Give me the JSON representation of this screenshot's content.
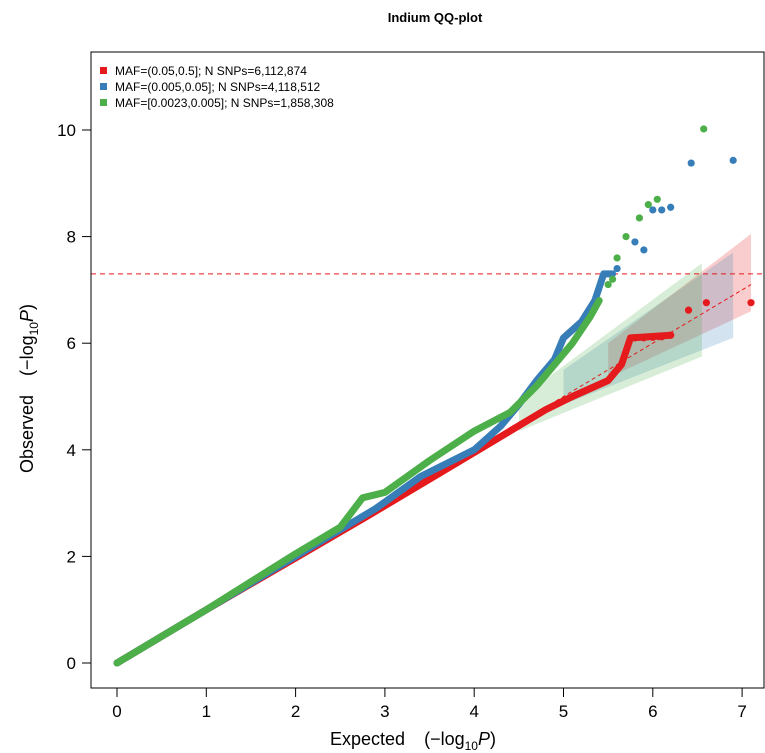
{
  "chart_data": {
    "type": "scatter",
    "title": "Indium QQ-plot",
    "xlabel": "Expected",
    "ylabel": "Observed",
    "axis_log_label": {
      "prefix": "(−log",
      "sub": "10",
      "var": "P",
      "suffix": ")"
    },
    "xlim": [
      0,
      7.1
    ],
    "ylim": [
      0,
      10.2
    ],
    "x_ticks": [
      0,
      1,
      2,
      3,
      4,
      5,
      6,
      7
    ],
    "y_ticks": [
      0,
      2,
      4,
      6,
      8,
      10
    ],
    "grid": false,
    "legend_position": "top-left",
    "significance_threshold": 7.3,
    "threshold_color": "#E41A1C",
    "series": [
      {
        "name": "MAF=(0.05,0.5]; N SNPs=6,112,874",
        "color": "#E41A1C",
        "curve": [
          [
            0,
            0
          ],
          [
            1,
            1
          ],
          [
            2,
            1.97
          ],
          [
            2.8,
            2.75
          ],
          [
            3.5,
            3.45
          ],
          [
            4,
            3.95
          ],
          [
            4.5,
            4.45
          ],
          [
            4.8,
            4.75
          ],
          [
            5.1,
            5.0
          ],
          [
            5.3,
            5.15
          ],
          [
            5.5,
            5.3
          ],
          [
            5.65,
            5.6
          ],
          [
            5.75,
            6.1
          ],
          [
            6.2,
            6.15
          ]
        ],
        "points": [
          [
            5.8,
            6.1
          ],
          [
            5.9,
            6.1
          ],
          [
            6.0,
            6.11
          ],
          [
            6.1,
            6.12
          ],
          [
            6.2,
            6.15
          ],
          [
            6.4,
            6.62
          ],
          [
            6.6,
            6.76
          ],
          [
            7.1,
            6.76
          ]
        ]
      },
      {
        "name": "MAF=(0.005,0.05]; N SNPs=4,118,512",
        "color": "#377EB8",
        "curve": [
          [
            0,
            0
          ],
          [
            1,
            1
          ],
          [
            2,
            2.0
          ],
          [
            2.9,
            2.9
          ],
          [
            3.4,
            3.5
          ],
          [
            4,
            4.0
          ],
          [
            4.3,
            4.45
          ],
          [
            4.5,
            4.85
          ],
          [
            4.7,
            5.3
          ],
          [
            4.9,
            5.7
          ],
          [
            5.0,
            6.1
          ],
          [
            5.2,
            6.4
          ],
          [
            5.35,
            6.8
          ],
          [
            5.45,
            7.3
          ],
          [
            5.55,
            7.3
          ]
        ],
        "points": [
          [
            5.6,
            7.4
          ],
          [
            5.8,
            7.9
          ],
          [
            5.9,
            7.75
          ],
          [
            6.0,
            8.5
          ],
          [
            6.1,
            8.5
          ],
          [
            6.2,
            8.55
          ],
          [
            6.43,
            9.38
          ],
          [
            6.9,
            9.43
          ]
        ]
      },
      {
        "name": "MAF=[0.0023,0.005]; N SNPs=1,858,308",
        "color": "#4DAF4A",
        "curve": [
          [
            0,
            0
          ],
          [
            1,
            1
          ],
          [
            2,
            2.05
          ],
          [
            2.5,
            2.55
          ],
          [
            2.75,
            3.1
          ],
          [
            3.0,
            3.2
          ],
          [
            3.5,
            3.8
          ],
          [
            4,
            4.35
          ],
          [
            4.4,
            4.7
          ],
          [
            4.7,
            5.2
          ],
          [
            4.9,
            5.6
          ],
          [
            5.1,
            6.0
          ],
          [
            5.3,
            6.5
          ],
          [
            5.4,
            6.8
          ]
        ],
        "points": [
          [
            5.5,
            7.1
          ],
          [
            5.55,
            7.2
          ],
          [
            5.6,
            7.6
          ],
          [
            5.7,
            8.0
          ],
          [
            5.85,
            8.35
          ],
          [
            5.95,
            8.6
          ],
          [
            6.05,
            8.7
          ],
          [
            6.57,
            10.02
          ]
        ]
      }
    ],
    "confidence_bands": [
      {
        "color": "#E41A1C",
        "x": [
          5.5,
          7.1
        ],
        "upper": [
          6.0,
          8.05
        ],
        "lower": [
          5.35,
          6.6
        ]
      },
      {
        "color": "#377EB8",
        "x": [
          5.0,
          6.9
        ],
        "upper": [
          5.5,
          7.7
        ],
        "lower": [
          4.85,
          6.1
        ]
      },
      {
        "color": "#4DAF4A",
        "x": [
          4.5,
          6.55
        ],
        "upper": [
          4.95,
          7.5
        ],
        "lower": [
          4.35,
          5.75
        ]
      }
    ]
  }
}
